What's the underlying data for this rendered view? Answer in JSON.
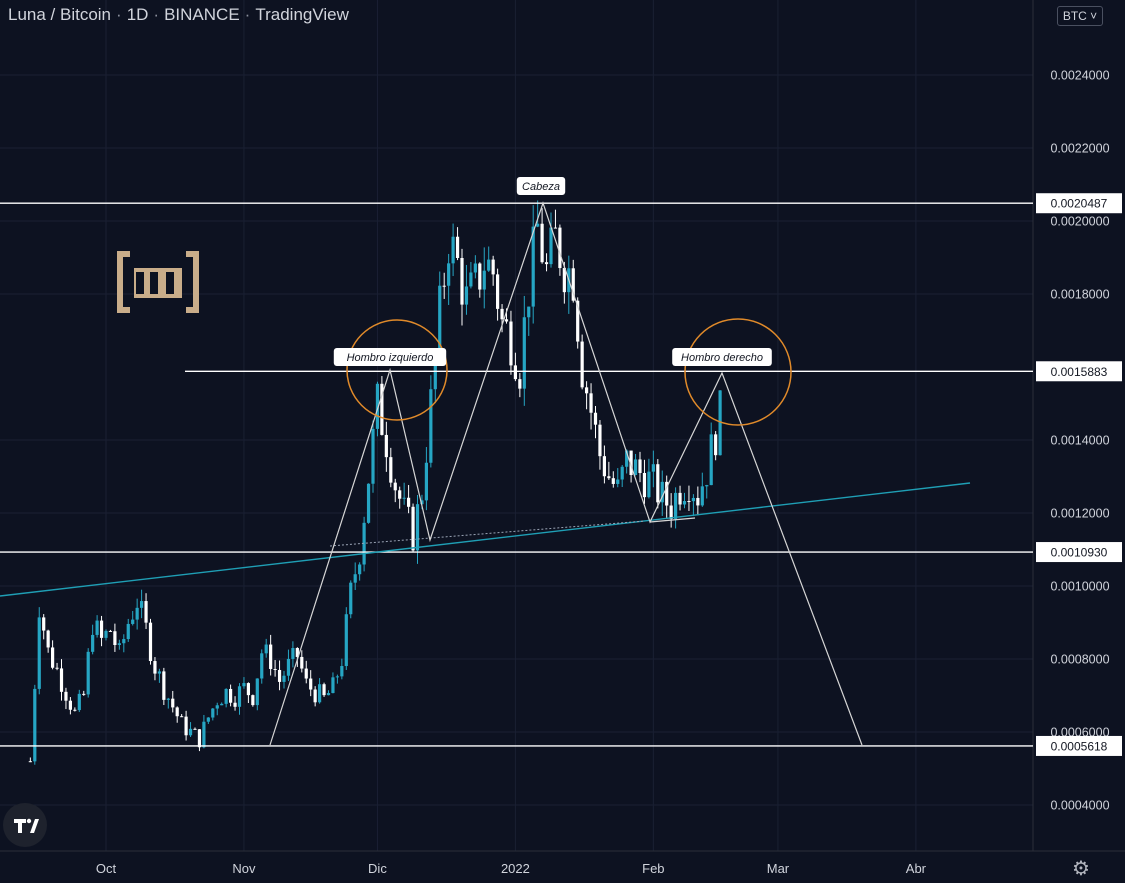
{
  "header": {
    "pair": "Luna / Bitcoin",
    "interval": "1D",
    "exchange": "BINANCE",
    "platform": "TradingView",
    "currency_button": "BTC ˅"
  },
  "colors": {
    "background": "#0d1221",
    "up_candle": "#26a6c4",
    "down_candle": "#ffffff",
    "trendline": "#1f9fb5",
    "horizontal_lines": "#ffffff",
    "pattern_lines": "#d6d6d6",
    "circle": "#e08a2a"
  },
  "icons": {
    "logo": "bein-logo",
    "tradingview": "tradingview-logo-icon",
    "settings": "gear-icon"
  },
  "chart_data": {
    "type": "candlestick",
    "title": "",
    "ylabel": "",
    "xlabel": "",
    "ylim": [
      0.00032,
      0.00263
    ],
    "y_ticks": [
      "0.0004000",
      "0.0006000",
      "0.0008000",
      "0.0010000",
      "0.0012000",
      "0.0014000",
      "0.0018000",
      "0.0020000",
      "0.0022000",
      "0.0024000"
    ],
    "x_ticks": [
      "Oct",
      "Nov",
      "Dic",
      "2022",
      "Feb",
      "Mar",
      "Abr"
    ],
    "horizontal_levels": [
      {
        "label": "0.0020487",
        "value": 0.0020487
      },
      {
        "label": "0.0015883",
        "value": 0.0015883
      },
      {
        "label": "0.0010930",
        "value": 0.001093
      },
      {
        "label": "0.0005618",
        "value": 0.0005618
      }
    ],
    "pattern_labels": [
      "Hombro izquierdo",
      "Cabeza",
      "Hombro derecho"
    ],
    "grid": true,
    "close_path": [
      [
        "2021-09-14",
        0.00052
      ],
      [
        "2021-09-16",
        0.00095
      ],
      [
        "2021-09-18",
        0.00082
      ],
      [
        "2021-09-20",
        0.00077
      ],
      [
        "2021-09-22",
        0.00071
      ],
      [
        "2021-09-24",
        0.00065
      ],
      [
        "2021-09-26",
        0.0007
      ],
      [
        "2021-09-28",
        0.0009
      ],
      [
        "2021-09-30",
        0.00085
      ],
      [
        "2021-10-02",
        0.00088
      ],
      [
        "2021-10-04",
        0.00081
      ],
      [
        "2021-10-06",
        0.0009
      ],
      [
        "2021-10-08",
        0.00096
      ],
      [
        "2021-10-10",
        0.00088
      ],
      [
        "2021-10-12",
        0.00078
      ],
      [
        "2021-10-14",
        0.00072
      ],
      [
        "2021-10-16",
        0.00067
      ],
      [
        "2021-10-18",
        0.00062
      ],
      [
        "2021-10-20",
        0.0006
      ],
      [
        "2021-10-22",
        0.00058
      ],
      [
        "2021-10-24",
        0.00064
      ],
      [
        "2021-10-26",
        0.00069
      ],
      [
        "2021-10-28",
        0.00071
      ],
      [
        "2021-10-30",
        0.0007
      ],
      [
        "2021-11-01",
        0.00072
      ],
      [
        "2021-11-03",
        0.0007
      ],
      [
        "2021-11-05",
        0.00082
      ],
      [
        "2021-11-07",
        0.0008
      ],
      [
        "2021-11-09",
        0.00074
      ],
      [
        "2021-11-11",
        0.00078
      ],
      [
        "2021-11-13",
        0.00081
      ],
      [
        "2021-11-15",
        0.00073
      ],
      [
        "2021-11-17",
        0.00071
      ],
      [
        "2021-11-19",
        0.00069
      ],
      [
        "2021-11-21",
        0.00072
      ],
      [
        "2021-11-23",
        0.0008
      ],
      [
        "2021-11-25",
        0.00098
      ],
      [
        "2021-11-27",
        0.0011
      ],
      [
        "2021-11-29",
        0.0013
      ],
      [
        "2021-12-01",
        0.0015
      ],
      [
        "2021-12-03",
        0.0014
      ],
      [
        "2021-12-05",
        0.00128
      ],
      [
        "2021-12-07",
        0.0012
      ],
      [
        "2021-12-09",
        0.00114
      ],
      [
        "2021-12-11",
        0.00126
      ],
      [
        "2021-12-13",
        0.0015
      ],
      [
        "2021-12-15",
        0.00175
      ],
      [
        "2021-12-17",
        0.00195
      ],
      [
        "2021-12-19",
        0.00188
      ],
      [
        "2021-12-21",
        0.00178
      ],
      [
        "2021-12-23",
        0.00182
      ],
      [
        "2021-12-25",
        0.00189
      ],
      [
        "2021-12-27",
        0.00186
      ],
      [
        "2021-12-29",
        0.00172
      ],
      [
        "2021-12-31",
        0.00168
      ],
      [
        "2022-01-02",
        0.0016
      ],
      [
        "2022-01-04",
        0.00182
      ],
      [
        "2022-01-06",
        0.00198
      ],
      [
        "2022-01-08",
        0.00186
      ],
      [
        "2022-01-10",
        0.00195
      ],
      [
        "2022-01-12",
        0.00188
      ],
      [
        "2022-01-14",
        0.00185
      ],
      [
        "2022-01-16",
        0.0016
      ],
      [
        "2022-01-18",
        0.00148
      ],
      [
        "2022-01-20",
        0.00136
      ],
      [
        "2022-01-22",
        0.0013
      ],
      [
        "2022-01-24",
        0.00126
      ],
      [
        "2022-01-26",
        0.00134
      ],
      [
        "2022-01-28",
        0.00132
      ],
      [
        "2022-01-30",
        0.0013
      ],
      [
        "2022-02-01",
        0.00128
      ],
      [
        "2022-02-03",
        0.00124
      ],
      [
        "2022-02-05",
        0.00122
      ],
      [
        "2022-02-07",
        0.00127
      ],
      [
        "2022-02-09",
        0.00129
      ],
      [
        "2022-02-11",
        0.00125
      ],
      [
        "2022-02-13",
        0.00132
      ],
      [
        "2022-02-15",
        0.00142
      ],
      [
        "2022-02-17",
        0.00152
      ]
    ]
  }
}
